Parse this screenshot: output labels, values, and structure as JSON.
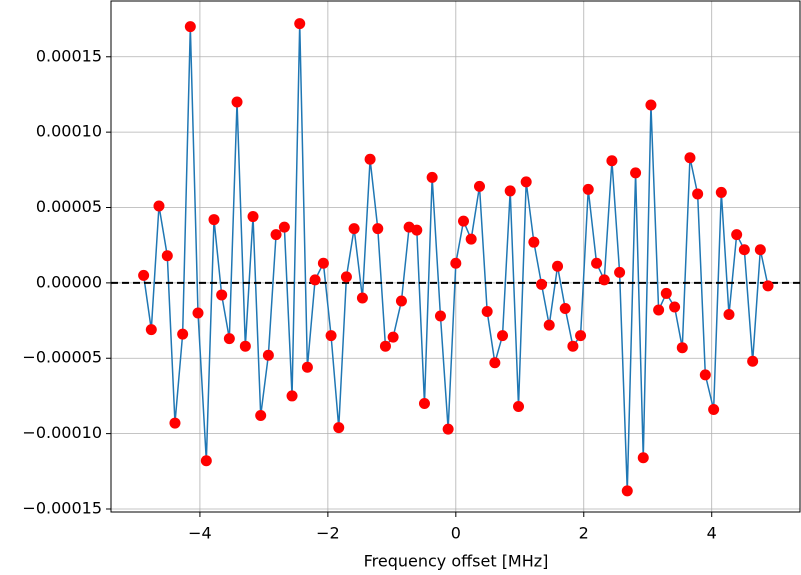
{
  "chart_data": {
    "type": "line",
    "xlabel": "Frequency offset [MHz]",
    "x": [
      -4.88,
      -4.76,
      -4.64,
      -4.51,
      -4.39,
      -4.27,
      -4.15,
      -4.03,
      -3.9,
      -3.78,
      -3.66,
      -3.54,
      -3.42,
      -3.29,
      -3.17,
      -3.05,
      -2.93,
      -2.81,
      -2.68,
      -2.56,
      -2.44,
      -2.32,
      -2.2,
      -2.07,
      -1.95,
      -1.83,
      -1.71,
      -1.59,
      -1.46,
      -1.34,
      -1.22,
      -1.1,
      -0.98,
      -0.85,
      -0.73,
      -0.61,
      -0.49,
      -0.37,
      -0.24,
      -0.12,
      0,
      0.12,
      0.24,
      0.37,
      0.49,
      0.61,
      0.73,
      0.85,
      0.98,
      1.1,
      1.22,
      1.34,
      1.46,
      1.59,
      1.71,
      1.83,
      1.95,
      2.07,
      2.2,
      2.32,
      2.44,
      2.56,
      2.68,
      2.81,
      2.93,
      3.05,
      3.17,
      3.29,
      3.42,
      3.54,
      3.66,
      3.78,
      3.9,
      4.03,
      4.15,
      4.27,
      4.39,
      4.51,
      4.64,
      4.76,
      4.88
    ],
    "series": [
      {
        "color": "#1f77b4",
        "marker_color": "#ff0000",
        "values": [
          5e-06,
          -3.1e-05,
          5.1e-05,
          1.8e-05,
          -9.3e-05,
          -3.4e-05,
          0.00017,
          -2e-05,
          -0.000118,
          4.2e-05,
          -8e-06,
          -3.7e-05,
          0.00012,
          -4.2e-05,
          4.4e-05,
          -8.8e-05,
          -4.8e-05,
          3.2e-05,
          3.7e-05,
          -7.5e-05,
          0.000172,
          -5.6e-05,
          2e-06,
          1.3e-05,
          -3.5e-05,
          -9.6e-05,
          4e-06,
          3.6e-05,
          -1e-05,
          8.2e-05,
          3.6e-05,
          -4.2e-05,
          -3.6e-05,
          -1.2e-05,
          3.7e-05,
          3.5e-05,
          -8e-05,
          7e-05,
          -2.2e-05,
          -9.7e-05,
          1.3e-05,
          4.1e-05,
          2.9e-05,
          6.4e-05,
          -1.9e-05,
          -5.3e-05,
          -3.5e-05,
          6.1e-05,
          -8.2e-05,
          6.7e-05,
          2.7e-05,
          -1e-06,
          -2.8e-05,
          1.1e-05,
          -1.7e-05,
          -4.2e-05,
          -3.5e-05,
          6.2e-05,
          1.3e-05,
          2e-06,
          8.1e-05,
          7e-06,
          -0.000138,
          7.3e-05,
          -0.000116,
          0.000118,
          -1.8e-05,
          -7e-06,
          -1.6e-05,
          -4.3e-05,
          8.3e-05,
          5.9e-05,
          -6.1e-05,
          -8.4e-05,
          6e-05,
          -2.1e-05,
          3.2e-05,
          2.2e-05,
          -5.2e-05,
          2.2e-05,
          -2e-06
        ]
      }
    ],
    "xlim": [
      -5.39,
      5.38
    ],
    "ylim": [
      -0.000152,
      0.000187
    ],
    "xticks": [
      {
        "value": -4,
        "label": "−4"
      },
      {
        "value": -2,
        "label": "−2"
      },
      {
        "value": 0,
        "label": "0"
      },
      {
        "value": 2,
        "label": "2"
      },
      {
        "value": 4,
        "label": "4"
      }
    ],
    "yticks": [
      {
        "value": -0.00015,
        "label": "−0.00015"
      },
      {
        "value": -0.0001,
        "label": "−0.00010"
      },
      {
        "value": -5e-05,
        "label": "−0.00005"
      },
      {
        "value": 0,
        "label": "0.00000"
      },
      {
        "value": 5e-05,
        "label": "0.00005"
      },
      {
        "value": 0.0001,
        "label": "0.00010"
      },
      {
        "value": 0.00015,
        "label": "0.00015"
      }
    ],
    "grid": true,
    "hline": 0
  }
}
